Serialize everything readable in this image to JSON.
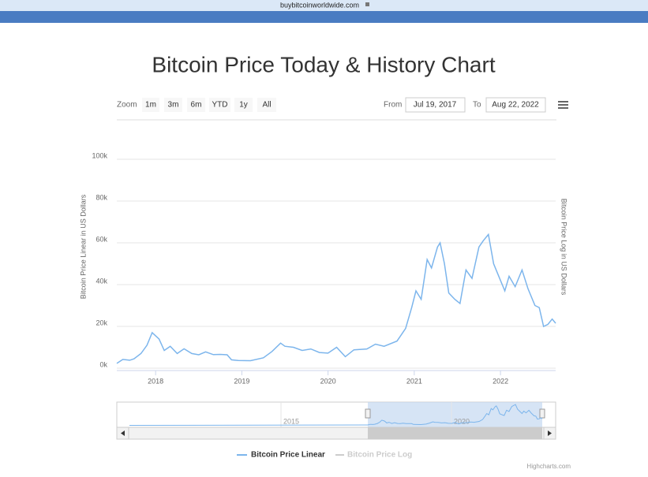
{
  "browser": {
    "url": "buybitcoinworldwide.com"
  },
  "toolbar": {
    "zoom_label": "Zoom",
    "buttons": [
      "1m",
      "3m",
      "6m",
      "YTD",
      "1y",
      "All"
    ],
    "from_label": "From",
    "from": "Jul 19, 2017",
    "to_label": "To",
    "to": "Aug 22, 2022"
  },
  "chart_data": {
    "type": "line",
    "title": "Bitcoin Price Today & History Chart",
    "y_label": "Bitcoin Price Linear in US Dollars",
    "y2_label": "Bitcoin Price Log in US Dollars",
    "xlim": [
      2017.55,
      2022.64
    ],
    "xticks": [
      2018,
      2019,
      2020,
      2021,
      2022
    ],
    "ylim": [
      0,
      100000
    ],
    "yticks": [
      {
        "value": 0,
        "label": "0k"
      },
      {
        "value": 20000,
        "label": "20k"
      },
      {
        "value": 40000,
        "label": "40k"
      },
      {
        "value": 60000,
        "label": "60k"
      },
      {
        "value": 80000,
        "label": "80k"
      },
      {
        "value": 100000,
        "label": "100k"
      }
    ],
    "grid": true,
    "x": [
      2017.55,
      2017.62,
      2017.7,
      2017.75,
      2017.83,
      2017.9,
      2017.96,
      2018.04,
      2018.1,
      2018.17,
      2018.25,
      2018.33,
      2018.42,
      2018.5,
      2018.58,
      2018.67,
      2018.75,
      2018.83,
      2018.88,
      2018.96,
      2019.1,
      2019.25,
      2019.35,
      2019.45,
      2019.5,
      2019.6,
      2019.7,
      2019.8,
      2019.9,
      2020.0,
      2020.1,
      2020.2,
      2020.3,
      2020.45,
      2020.55,
      2020.65,
      2020.8,
      2020.9,
      2020.97,
      2021.02,
      2021.08,
      2021.15,
      2021.2,
      2021.27,
      2021.3,
      2021.35,
      2021.4,
      2021.47,
      2021.53,
      2021.6,
      2021.67,
      2021.75,
      2021.8,
      2021.86,
      2021.92,
      2022.0,
      2022.05,
      2022.1,
      2022.17,
      2022.25,
      2022.32,
      2022.4,
      2022.45,
      2022.5,
      2022.55,
      2022.6,
      2022.64
    ],
    "series": [
      {
        "name": "Bitcoin Price Linear",
        "color": "#7cb5ec",
        "values": [
          2300,
          4200,
          3800,
          4500,
          7000,
          11000,
          17000,
          14000,
          8500,
          10500,
          7000,
          9300,
          7000,
          6400,
          7800,
          6500,
          6600,
          6400,
          4000,
          3700,
          3600,
          5000,
          8000,
          12000,
          10500,
          10000,
          8500,
          9200,
          7500,
          7200,
          10000,
          5500,
          8800,
          9200,
          11500,
          10500,
          13000,
          19000,
          29000,
          37000,
          33000,
          52000,
          48000,
          58000,
          60000,
          50000,
          36000,
          33000,
          31000,
          47000,
          43000,
          58000,
          61000,
          64000,
          50000,
          42000,
          37000,
          44000,
          39000,
          47000,
          38000,
          30000,
          29000,
          20000,
          21000,
          23500,
          21500
        ]
      }
    ],
    "hidden_series": [
      {
        "name": "Bitcoin Price Log",
        "color": "#cccccc"
      }
    ],
    "navigator_labels": [
      "2015",
      "2020"
    ],
    "credits": "Highcharts.com"
  }
}
